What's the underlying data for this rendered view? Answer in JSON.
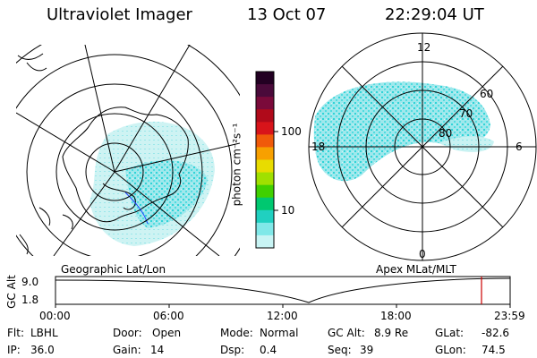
{
  "header": {
    "title": "Ultraviolet Imager",
    "date": "13 Oct 07",
    "time": "22:29:04 UT"
  },
  "colorbar": {
    "label": "photon cm⁻²s⁻¹",
    "ticks": [
      "100",
      "10"
    ],
    "colors": [
      "#220022",
      "#4a0a3a",
      "#7a0a3a",
      "#b00a1a",
      "#d8141a",
      "#f05a0a",
      "#f7a000",
      "#e8dc00",
      "#a0e000",
      "#40d000",
      "#00c870",
      "#20d0c0",
      "#80e8e8",
      "#c8f4f4"
    ]
  },
  "left_map": {
    "caption": "Geographic Lat/Lon"
  },
  "right_map": {
    "caption": "Apex MLat/MLT",
    "mlt_labels": [
      "12",
      "18",
      "6",
      "0"
    ],
    "lat_labels": [
      "60",
      "70",
      "80"
    ]
  },
  "altitude_plot": {
    "ylabel": "GC Alt",
    "yticks": [
      "9.0",
      "1.8"
    ],
    "xticks": [
      "00:00",
      "06:00",
      "12:00",
      "18:00",
      "23:59"
    ],
    "marker_color": "#cc0000"
  },
  "info": {
    "row1": [
      {
        "label": "Flt:",
        "value": "LBHL"
      },
      {
        "label": "Door:",
        "value": "Open"
      },
      {
        "label": "Mode:",
        "value": "Normal"
      },
      {
        "label": "GC Alt:",
        "value": "8.9 Re"
      },
      {
        "label": "GLat:",
        "value": "-82.6"
      }
    ],
    "row2": [
      {
        "label": "IP:",
        "value": "36.0"
      },
      {
        "label": "Gain:",
        "value": "14"
      },
      {
        "label": "Dsp:",
        "value": "0.4"
      },
      {
        "label": "Seq:",
        "value": "39"
      },
      {
        "label": "GLon:",
        "value": "74.5"
      }
    ]
  }
}
